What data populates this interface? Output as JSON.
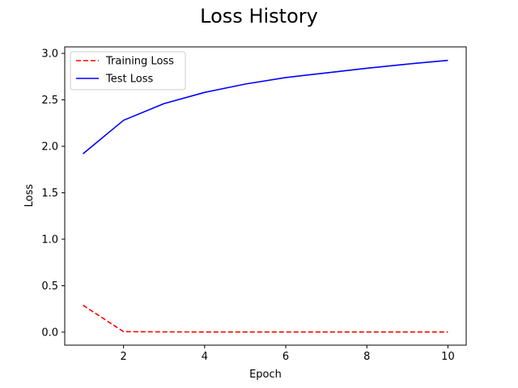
{
  "chart_data": {
    "type": "line",
    "title": "Loss History",
    "xlabel": "Epoch",
    "ylabel": "Loss",
    "x": [
      1,
      2,
      3,
      4,
      5,
      6,
      7,
      8,
      9,
      10
    ],
    "xlim": [
      0.55,
      10.45
    ],
    "ylim": [
      -0.14,
      3.07
    ],
    "xticks": [
      2,
      4,
      6,
      8,
      10
    ],
    "yticks": [
      0.0,
      0.5,
      1.0,
      1.5,
      2.0,
      2.5,
      3.0
    ],
    "xtick_labels": [
      "2",
      "4",
      "6",
      "8",
      "10"
    ],
    "ytick_labels": [
      "0.0",
      "0.5",
      "1.0",
      "1.5",
      "2.0",
      "2.5",
      "3.0"
    ],
    "grid": false,
    "legend_position": "upper-left",
    "series": [
      {
        "name": "Training Loss",
        "color": "#ff0000",
        "line_style": "dashed",
        "values": [
          0.29,
          0.005,
          0.003,
          0.002,
          0.002,
          0.002,
          0.002,
          0.002,
          0.002,
          0.002
        ]
      },
      {
        "name": "Test Loss",
        "color": "#0000ff",
        "line_style": "solid",
        "values": [
          1.92,
          2.28,
          2.46,
          2.58,
          2.67,
          2.74,
          2.79,
          2.84,
          2.885,
          2.925
        ]
      }
    ]
  }
}
